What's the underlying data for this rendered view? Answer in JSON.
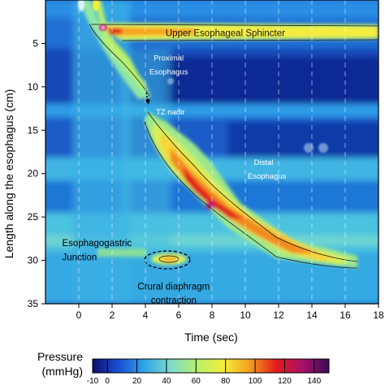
{
  "chart_data": {
    "type": "heatmap",
    "title": "",
    "xlabel": "Time (sec)",
    "ylabel": "Length along the esophagus (cm)",
    "xlim": [
      -2,
      18
    ],
    "ylim": [
      0,
      35
    ],
    "y_inverted": true,
    "x_ticks": [
      "0",
      "2",
      "4",
      "6",
      "8",
      "10",
      "12",
      "14",
      "16",
      "18"
    ],
    "x_tick_values": [
      0,
      2,
      4,
      6,
      8,
      10,
      12,
      14,
      16,
      18
    ],
    "y_ticks": [
      "5",
      "10",
      "15",
      "20",
      "25",
      "30",
      "35"
    ],
    "y_tick_values": [
      5,
      10,
      15,
      20,
      25,
      30,
      35
    ],
    "vertical_gridlines_at": [
      0,
      2,
      4,
      6,
      8,
      10,
      12,
      14,
      16
    ],
    "grid": true,
    "pressure_regions": [
      {
        "name": "Upper Esophageal Sphincter",
        "t_start": 1.5,
        "t_end": 18,
        "length_cm": 3.7,
        "peak_mmHg": 120
      },
      {
        "name": "Peristaltic wave (proximal)",
        "t_start": 1.2,
        "t_end": 4.0,
        "length_from": 3,
        "length_to": 12,
        "peak_mmHg": 70
      },
      {
        "name": "Peristaltic wave (distal)",
        "t_start": 4.0,
        "t_end": 15.5,
        "length_from": 12,
        "length_to": 30,
        "peak_mmHg": 110
      },
      {
        "name": "Crural diaphragm",
        "t": 5.6,
        "length_cm": 29.7,
        "peak_mmHg": 80
      },
      {
        "name": "Esophagogastric junction",
        "t_start": -2,
        "t_end": 18,
        "length_cm": 28.5,
        "peak_mmHg": 40
      }
    ],
    "annotations": [
      {
        "text": "Upper Esophageal Sphincter",
        "t": 8.8,
        "length_cm": 3.8
      },
      {
        "text": "Proximal",
        "t": 5.4,
        "length_cm": 6.6
      },
      {
        "text": "Esophagus",
        "t": 5.4,
        "length_cm": 8.2
      },
      {
        "text": "TZ nadir",
        "t": 5.5,
        "length_cm": 12.8
      },
      {
        "text": "Distal",
        "t": 11.1,
        "length_cm": 18.6
      },
      {
        "text": "Esophagus",
        "t": 11.3,
        "length_cm": 20.2
      },
      {
        "text": "Esophagogastric",
        "t": -1.0,
        "length_cm": 28.0
      },
      {
        "text": "Junction",
        "t": -1.0,
        "length_cm": 29.6
      },
      {
        "text": "Crural diaphragm",
        "t": 5.7,
        "length_cm": 33.0
      },
      {
        "text": "contraction",
        "t": 5.7,
        "length_cm": 34.6
      }
    ],
    "colorbar": {
      "title_line1": "Pressure",
      "title_line2": "(mmHg)",
      "range": [
        -10,
        150
      ],
      "tick_labels": [
        "-10",
        "0",
        "20",
        "40",
        "60",
        "80",
        "100",
        "120",
        "140"
      ],
      "colors": [
        "#0a0f6e",
        "#1a4fd6",
        "#2fa7e8",
        "#7fdcc8",
        "#b6f06a",
        "#f7ee3a",
        "#f39c1c",
        "#e31a1c",
        "#a8106a",
        "#3a0a5a"
      ]
    }
  }
}
